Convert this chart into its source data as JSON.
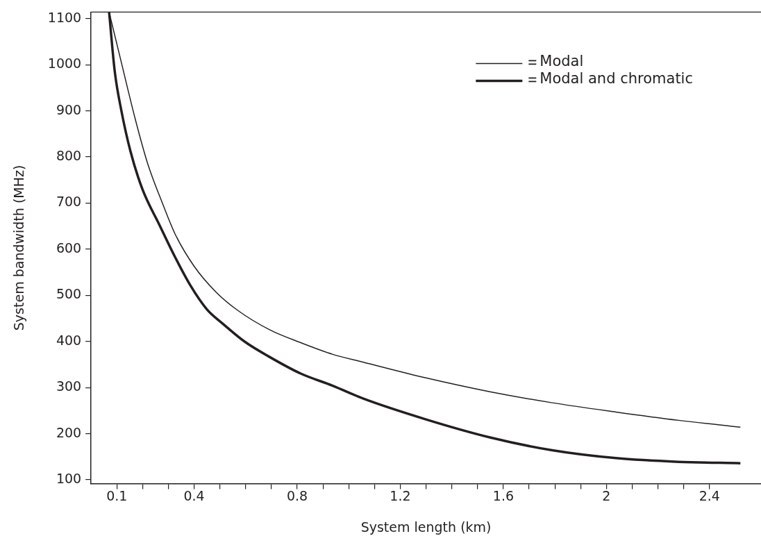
{
  "chart_data": {
    "type": "line",
    "xlabel": "System length (km)",
    "ylabel": "System bandwidth (MHz)",
    "xlim": [
      0,
      2.6
    ],
    "ylim": [
      92,
      1114
    ],
    "xticks": [
      0.1,
      {
        "value": 0.2,
        "label": null
      },
      {
        "value": 0.3,
        "label": null
      },
      0.4,
      {
        "value": 0.5,
        "label": null
      },
      {
        "value": 0.6,
        "label": null
      },
      {
        "value": 0.7,
        "label": null
      },
      0.8,
      {
        "value": 0.9,
        "label": null
      },
      {
        "value": 1.0,
        "label": null
      },
      {
        "value": 1.1,
        "label": null
      },
      1.2,
      {
        "value": 1.3,
        "label": null
      },
      {
        "value": 1.4,
        "label": null
      },
      {
        "value": 1.5,
        "label": null
      },
      1.6,
      {
        "value": 1.7,
        "label": null
      },
      {
        "value": 1.8,
        "label": null
      },
      {
        "value": 1.9,
        "label": null
      },
      2,
      {
        "value": 2.1,
        "label": null
      },
      {
        "value": 2.2,
        "label": null
      },
      {
        "value": 2.3,
        "label": null
      },
      2.4
    ],
    "yticks": [
      100,
      200,
      300,
      400,
      500,
      600,
      700,
      800,
      900,
      1000,
      1100
    ],
    "grid": false,
    "legend": "top right",
    "marker": "none",
    "line_style": "solid",
    "series": [
      {
        "name": "Modal",
        "color": "#231f20",
        "x": [
          0.07,
          0.117,
          0.172,
          0.22,
          0.276,
          0.326,
          0.4,
          0.485,
          0.57,
          0.694,
          0.815,
          0.938,
          1.057,
          1.3,
          1.548,
          1.79,
          2.037,
          2.28,
          2.52
        ],
        "values": [
          1114,
          1006,
          881,
          785,
          701,
          633,
          563,
          507,
          467,
          425,
          397,
          372,
          355,
          321,
          291,
          267,
          247,
          229,
          214
        ]
      },
      {
        "name": "Modal and chromatic",
        "color": "#231f20",
        "x": [
          0.07,
          0.092,
          0.117,
          0.153,
          0.2,
          0.265,
          0.326,
          0.386,
          0.449,
          0.51,
          0.595,
          0.694,
          0.815,
          0.938,
          1.057,
          1.3,
          1.548,
          1.79,
          2.037,
          2.28,
          2.52
        ],
        "values": [
          1114,
          985,
          902,
          812,
          729,
          653,
          583,
          521,
          470,
          439,
          400,
          366,
          330,
          304,
          276,
          231,
          192,
          164,
          147,
          139,
          136
        ]
      }
    ]
  }
}
